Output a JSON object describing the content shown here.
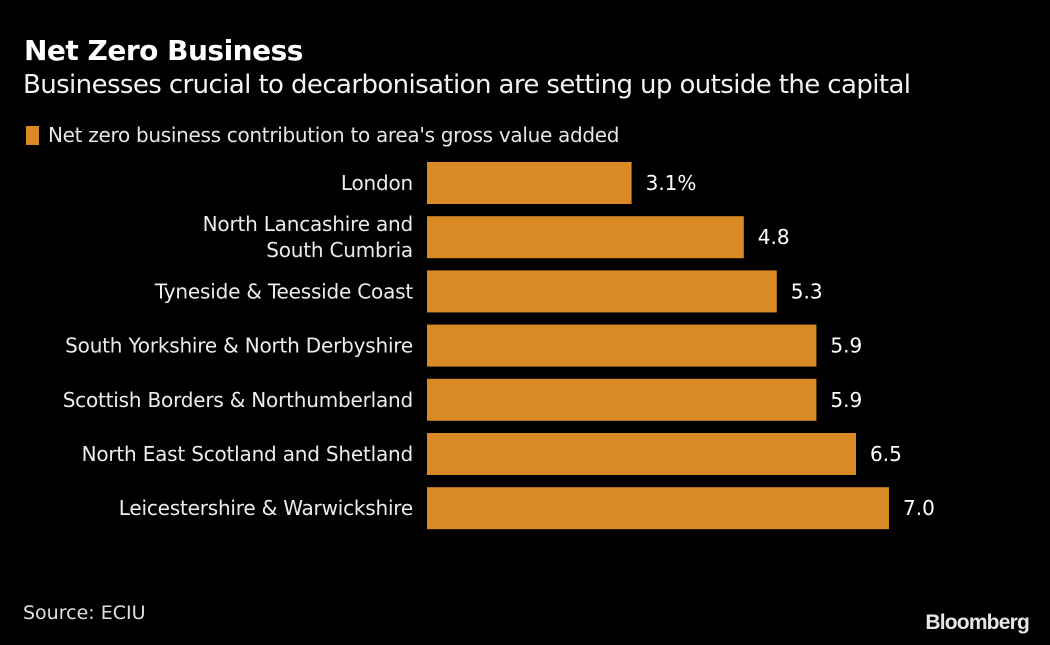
{
  "header": {
    "title": "Net Zero Business",
    "subtitle": "Businesses crucial to decarbonisation are setting up outside the capital"
  },
  "footer": {
    "source": "Source: ECIU",
    "brand": "Bloomberg"
  },
  "colors": {
    "background": "#000000",
    "bar": "#DA8A25"
  },
  "chart_data": {
    "type": "bar",
    "orientation": "horizontal",
    "title": "Net Zero Business",
    "subtitle": "Businesses crucial to decarbonisation are setting up outside the capital",
    "legend": [
      "Net zero business contribution to area's gross value added"
    ],
    "legend_position": "top-left",
    "categories": [
      [
        "London"
      ],
      [
        "North Lancashire and",
        "South Cumbria"
      ],
      [
        "Tyneside & Teesside Coast"
      ],
      [
        "South Yorkshire & North Derbyshire"
      ],
      [
        "Scottish Borders & Northumberland"
      ],
      [
        "North East Scotland and Shetland"
      ],
      [
        "Leicestershire & Warwickshire"
      ]
    ],
    "values": [
      3.1,
      4.8,
      5.3,
      5.9,
      5.9,
      6.5,
      7.0
    ],
    "value_labels": [
      "3.1%",
      "4.8",
      "5.3",
      "5.9",
      "5.9",
      "6.5",
      "7.0"
    ],
    "unit": "%",
    "xlabel": "",
    "ylabel": "",
    "xlim": [
      0,
      7.0
    ],
    "grid": false,
    "source": "ECIU"
  }
}
